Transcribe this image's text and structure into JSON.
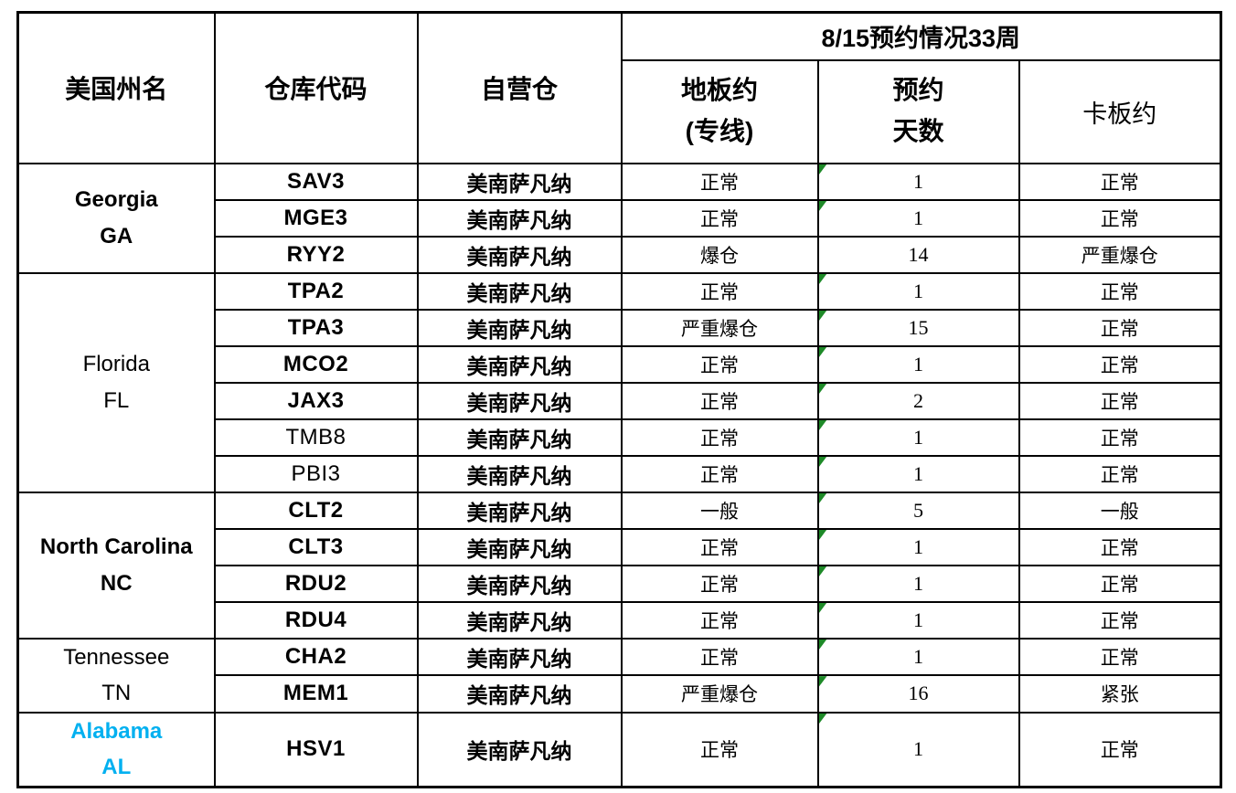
{
  "table": {
    "header": {
      "col_state": "美国州名",
      "col_code": "仓库代码",
      "col_warehouse": "自营仓",
      "group_title": "8/15预约情况33周",
      "col_floor_l1": "地板约",
      "col_floor_l2": "(专线)",
      "col_days_l1": "预约",
      "col_days_l2": "天数",
      "col_pallet": "卡板约"
    },
    "state_groups": [
      {
        "line1": "Georgia",
        "line2": "GA",
        "row_span": 3
      },
      {
        "line1": "Florida",
        "line2": "FL",
        "row_span": 6
      },
      {
        "line1": "North Carolina",
        "line2": "NC",
        "row_span": 4
      },
      {
        "line1": "Tennessee",
        "line2": "TN",
        "row_span": 2
      },
      {
        "line1": "Alabama",
        "line2": "AL",
        "row_span": 1
      }
    ],
    "rows": [
      {
        "code": "SAV3",
        "warehouse": "美南萨凡纳",
        "floor_status": "正常",
        "days": "1",
        "pallet_status": "正常",
        "marker": true
      },
      {
        "code": "MGE3",
        "warehouse": "美南萨凡纳",
        "floor_status": "正常",
        "days": "1",
        "pallet_status": "正常",
        "marker": true
      },
      {
        "code": "RYY2",
        "warehouse": "美南萨凡纳",
        "floor_status": "爆仓",
        "days": "14",
        "pallet_status": "严重爆仓",
        "marker": false
      },
      {
        "code": "TPA2",
        "warehouse": "美南萨凡纳",
        "floor_status": "正常",
        "days": "1",
        "pallet_status": "正常",
        "marker": true
      },
      {
        "code": "TPA3",
        "warehouse": "美南萨凡纳",
        "floor_status": "严重爆仓",
        "days": "15",
        "pallet_status": "正常",
        "marker": true
      },
      {
        "code": "MCO2",
        "warehouse": "美南萨凡纳",
        "floor_status": "正常",
        "days": "1",
        "pallet_status": "正常",
        "marker": true
      },
      {
        "code": "JAX3",
        "warehouse": "美南萨凡纳",
        "floor_status": "正常",
        "days": "2",
        "pallet_status": "正常",
        "marker": true
      },
      {
        "code": "TMB8",
        "warehouse": "美南萨凡纳",
        "floor_status": "正常",
        "days": "1",
        "pallet_status": "正常",
        "marker": true
      },
      {
        "code": "PBI3",
        "warehouse": "美南萨凡纳",
        "floor_status": "正常",
        "days": "1",
        "pallet_status": "正常",
        "marker": true
      },
      {
        "code": "CLT2",
        "warehouse": "美南萨凡纳",
        "floor_status": "一般",
        "days": "5",
        "pallet_status": "一般",
        "marker": true
      },
      {
        "code": "CLT3",
        "warehouse": "美南萨凡纳",
        "floor_status": "正常",
        "days": "1",
        "pallet_status": "正常",
        "marker": true
      },
      {
        "code": "RDU2",
        "warehouse": "美南萨凡纳",
        "floor_status": "正常",
        "days": "1",
        "pallet_status": "正常",
        "marker": true
      },
      {
        "code": "RDU4",
        "warehouse": "美南萨凡纳",
        "floor_status": "正常",
        "days": "1",
        "pallet_status": "正常",
        "marker": true
      },
      {
        "code": "CHA2",
        "warehouse": "美南萨凡纳",
        "floor_status": "正常",
        "days": "1",
        "pallet_status": "正常",
        "marker": true
      },
      {
        "code": "MEM1",
        "warehouse": "美南萨凡纳",
        "floor_status": "严重爆仓",
        "days": "16",
        "pallet_status": "紧张",
        "marker": true
      },
      {
        "code": "HSV1",
        "warehouse": "美南萨凡纳",
        "floor_status": "正常",
        "days": "1",
        "pallet_status": "正常",
        "marker": true
      }
    ]
  },
  "colors": {
    "alabama_text": "#00B0F0",
    "error_marker_green": "#1E8A28",
    "border": "#000000",
    "background": "#FFFFFF"
  },
  "icons": [
    {
      "name": "cell-error-marker-icon",
      "meaning": "green corner triangle (number-stored-as-text indicator)"
    }
  ]
}
